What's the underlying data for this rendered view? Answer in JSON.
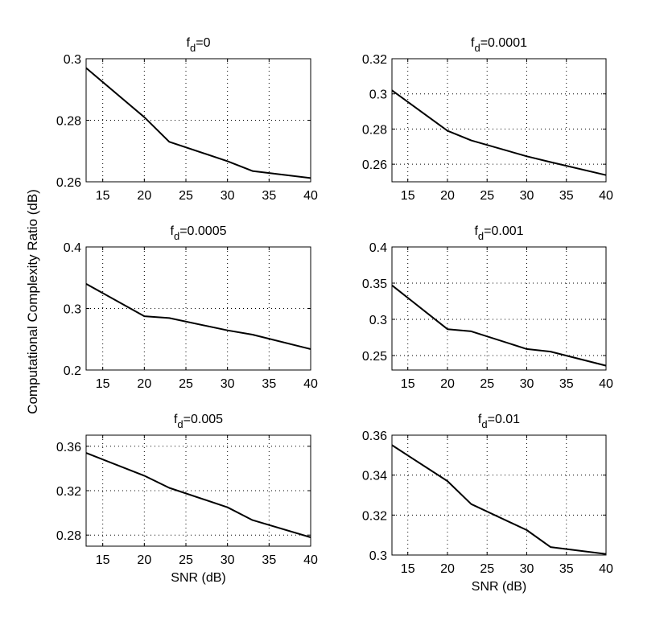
{
  "figure": {
    "ylabel": "Computational Complexity Ratio (dB)"
  },
  "chart_data": [
    {
      "type": "line",
      "title_main": "f",
      "title_sub": "d",
      "title_value": "=0",
      "xlabel": "",
      "xlim": [
        13,
        40
      ],
      "ylim": [
        0.26,
        0.3
      ],
      "xticks": [
        15,
        20,
        25,
        30,
        35,
        40
      ],
      "xtick_labels": [
        "15",
        "20",
        "25",
        "30",
        "35",
        "40"
      ],
      "yticks": [
        0.26,
        0.28,
        0.3
      ],
      "ytick_labels": [
        "0.26",
        "0.28",
        "0.3"
      ],
      "grid": true,
      "series": [
        {
          "name": "f_d=0",
          "x": [
            13,
            20,
            23,
            30,
            33,
            40
          ],
          "y": [
            0.297,
            0.281,
            0.273,
            0.2667,
            0.2635,
            0.2612
          ]
        }
      ]
    },
    {
      "type": "line",
      "title_main": "f",
      "title_sub": "d",
      "title_value": "=0.0001",
      "xlabel": "",
      "xlim": [
        13,
        40
      ],
      "ylim": [
        0.25,
        0.32
      ],
      "xticks": [
        15,
        20,
        25,
        30,
        35,
        40
      ],
      "xtick_labels": [
        "15",
        "20",
        "25",
        "30",
        "35",
        "40"
      ],
      "yticks": [
        0.26,
        0.28,
        0.3,
        0.32
      ],
      "ytick_labels": [
        "0.26",
        "0.28",
        "0.3",
        "0.32"
      ],
      "grid": true,
      "series": [
        {
          "name": "f_d=0.0001",
          "x": [
            13,
            20,
            23,
            30,
            33,
            40
          ],
          "y": [
            0.302,
            0.279,
            0.2735,
            0.2645,
            0.2612,
            0.2538
          ]
        }
      ]
    },
    {
      "type": "line",
      "title_main": "f",
      "title_sub": "d",
      "title_value": "=0.0005",
      "xlabel": "",
      "xlim": [
        13,
        40
      ],
      "ylim": [
        0.2,
        0.4
      ],
      "xticks": [
        15,
        20,
        25,
        30,
        35,
        40
      ],
      "xtick_labels": [
        "15",
        "20",
        "25",
        "30",
        "35",
        "40"
      ],
      "yticks": [
        0.2,
        0.3,
        0.4
      ],
      "ytick_labels": [
        "0.2",
        "0.3",
        "0.4"
      ],
      "grid": true,
      "series": [
        {
          "name": "f_d=0.0005",
          "x": [
            13,
            20,
            23,
            30,
            33,
            40
          ],
          "y": [
            0.34,
            0.2875,
            0.2845,
            0.2645,
            0.2575,
            0.234
          ]
        }
      ]
    },
    {
      "type": "line",
      "title_main": "f",
      "title_sub": "d",
      "title_value": "=0.001",
      "xlabel": "",
      "xlim": [
        13,
        40
      ],
      "ylim": [
        0.23,
        0.4
      ],
      "xticks": [
        15,
        20,
        25,
        30,
        35,
        40
      ],
      "xtick_labels": [
        "15",
        "20",
        "25",
        "30",
        "35",
        "40"
      ],
      "yticks": [
        0.25,
        0.3,
        0.35,
        0.4
      ],
      "ytick_labels": [
        "0.25",
        "0.3",
        "0.35",
        "0.4"
      ],
      "grid": true,
      "series": [
        {
          "name": "f_d=0.001",
          "x": [
            13,
            20,
            23,
            30,
            33,
            40
          ],
          "y": [
            0.347,
            0.2865,
            0.2835,
            0.259,
            0.2555,
            0.236
          ]
        }
      ]
    },
    {
      "type": "line",
      "title_main": "f",
      "title_sub": "d",
      "title_value": "=0.005",
      "xlabel": "SNR (dB)",
      "xlim": [
        13,
        40
      ],
      "ylim": [
        0.27,
        0.37
      ],
      "xticks": [
        15,
        20,
        25,
        30,
        35,
        40
      ],
      "xtick_labels": [
        "15",
        "20",
        "25",
        "30",
        "35",
        "40"
      ],
      "yticks": [
        0.28,
        0.32,
        0.36
      ],
      "ytick_labels": [
        "0.28",
        "0.32",
        "0.36"
      ],
      "grid": true,
      "series": [
        {
          "name": "f_d=0.005",
          "x": [
            13,
            20,
            23,
            30,
            33,
            40
          ],
          "y": [
            0.354,
            0.3335,
            0.3225,
            0.305,
            0.2935,
            0.278
          ]
        }
      ]
    },
    {
      "type": "line",
      "title_main": "f",
      "title_sub": "d",
      "title_value": "=0.01",
      "xlabel": "SNR (dB)",
      "xlim": [
        13,
        40
      ],
      "ylim": [
        0.3,
        0.36
      ],
      "xticks": [
        15,
        20,
        25,
        30,
        35,
        40
      ],
      "xtick_labels": [
        "15",
        "20",
        "25",
        "30",
        "35",
        "40"
      ],
      "yticks": [
        0.3,
        0.32,
        0.34,
        0.36
      ],
      "ytick_labels": [
        "0.3",
        "0.32",
        "0.34",
        "0.36"
      ],
      "grid": true,
      "series": [
        {
          "name": "f_d=0.01",
          "x": [
            13,
            20,
            23,
            30,
            33,
            40
          ],
          "y": [
            0.355,
            0.337,
            0.3255,
            0.3125,
            0.304,
            0.3005
          ]
        }
      ]
    }
  ]
}
